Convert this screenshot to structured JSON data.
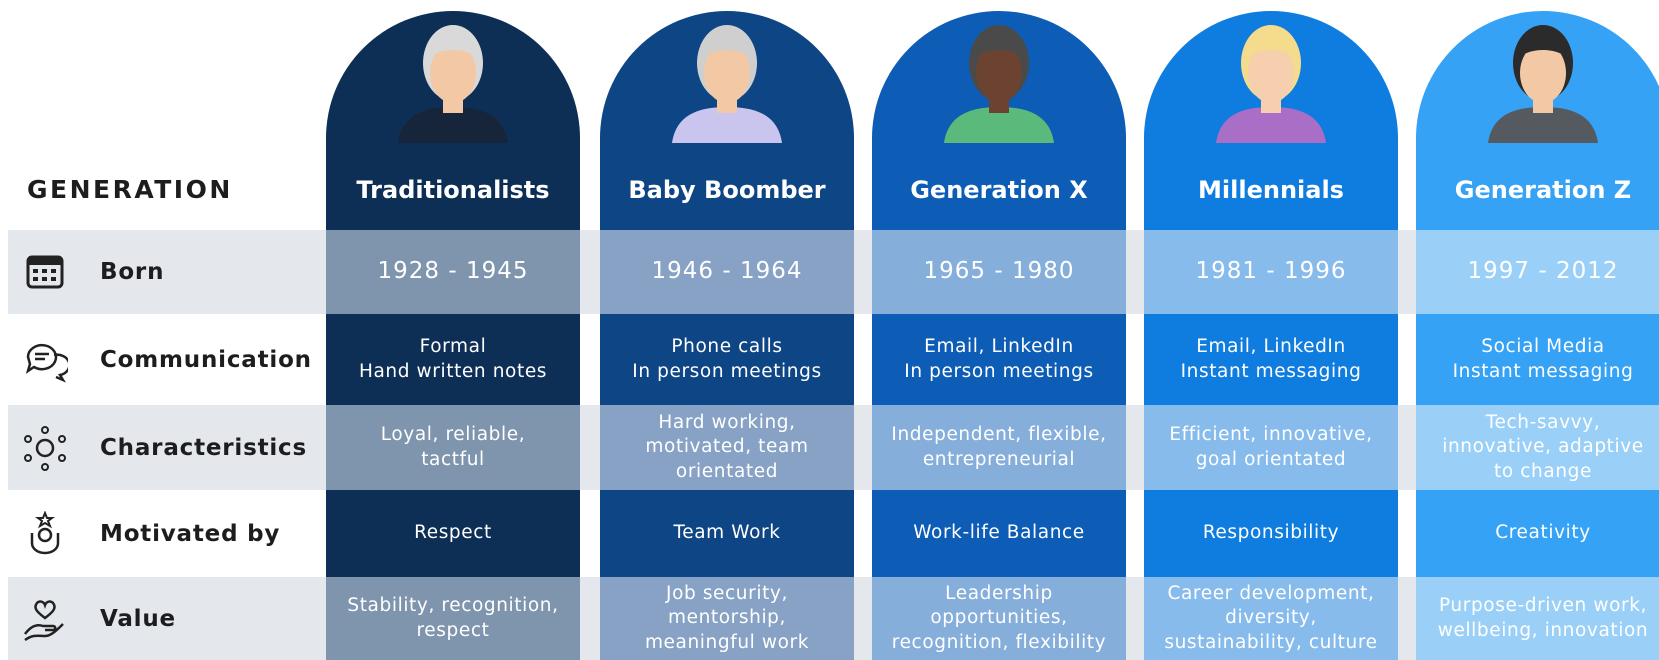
{
  "header_label": "GENERATION",
  "generations": [
    "Traditionalists",
    "Baby Boomber",
    "Generation X",
    "Millennials",
    "Generation Z"
  ],
  "rows": [
    {
      "label": "Born",
      "cells": [
        "1928 - 1945",
        "1946 - 1964",
        "1965 - 1980",
        "1981 - 1996",
        "1997 - 2012"
      ]
    },
    {
      "label": "Communication",
      "cells": [
        "Formal\nHand written notes",
        "Phone calls\nIn person meetings",
        "Email, LinkedIn\nIn person meetings",
        "Email, LinkedIn\nInstant messaging",
        "Social Media\nInstant messaging"
      ]
    },
    {
      "label": "Characteristics",
      "cells": [
        "Loyal, reliable,\ntactful",
        "Hard working,\nmotivated, team\norientated",
        "Independent, flexible,\nentrepreneurial",
        "Efficient, innovative,\ngoal orientated",
        "Tech-savvy,\ninnovative, adaptive\nto change"
      ]
    },
    {
      "label": "Motivated by",
      "cells": [
        "Respect",
        "Team Work",
        "Work-life Balance",
        "Responsibility",
        "Creativity"
      ]
    },
    {
      "label": "Value",
      "cells": [
        "Stability, recognition,\nrespect",
        "Job security,\nmentorship,\nmeaningful work",
        "Leadership\nopportunities,\nrecognition, flexibility",
        "Career development,\ndiversity,\nsustainability, culture",
        "Purpose-driven work,\nwellbeing, innovation"
      ]
    }
  ]
}
